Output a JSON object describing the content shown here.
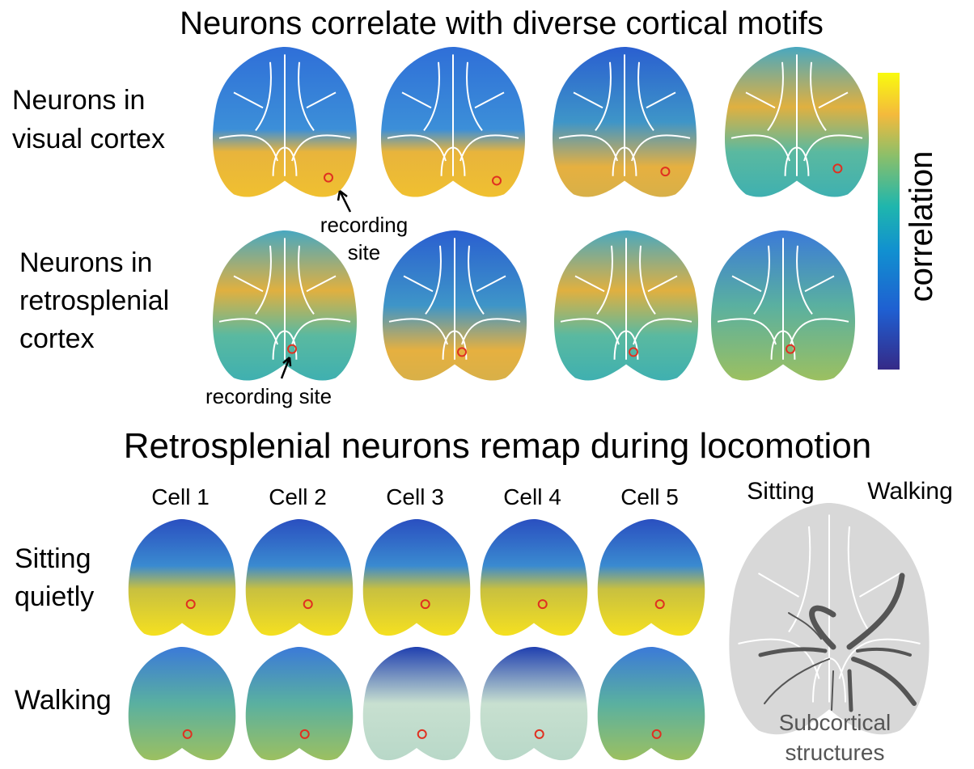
{
  "figure_top": {
    "title": "Neurons correlate with diverse cortical motifs",
    "row_labels": [
      [
        "Neurons in",
        "visual cortex"
      ],
      [
        "Neurons in",
        "retrosplenial",
        "cortex"
      ]
    ],
    "annotations": [
      [
        "recording",
        "site"
      ],
      [
        "recording site"
      ]
    ],
    "colorbar_label": "correlation"
  },
  "figure_bottom": {
    "title": "Retrosplenial neurons remap during locomotion",
    "cells": [
      "Cell 1",
      "Cell 2",
      "Cell 3",
      "Cell 4",
      "Cell 5"
    ],
    "row_labels": [
      [
        "Sitting",
        "quietly"
      ],
      [
        "Walking"
      ]
    ],
    "diagram": {
      "left_label": "Sitting",
      "right_label": "Walking",
      "caption": [
        "Subcortical",
        "structures"
      ]
    }
  }
}
